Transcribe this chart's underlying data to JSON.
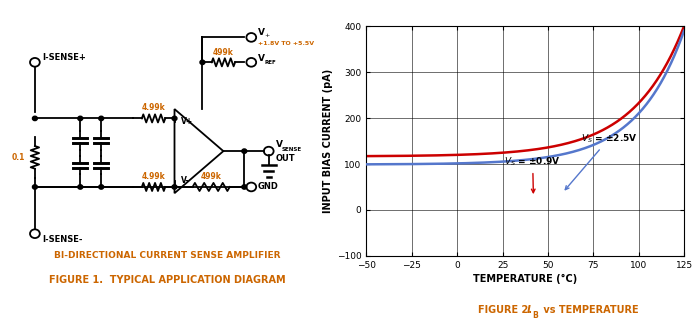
{
  "fig_width": 6.98,
  "fig_height": 3.28,
  "bg_color": "#ffffff",
  "left_panel": {
    "title1": "BI-DIRECTIONAL CURRENT SENSE AMPLIFIER",
    "title2": "FIGURE 1.  TYPICAL APPLICATION DIAGRAM",
    "title_color": "#cc6600",
    "title1_fontsize": 6.5,
    "title2_fontsize": 7.0
  },
  "right_panel": {
    "xlabel": "TEMPERATURE (°C)",
    "ylabel": "INPUT BIAS CURRENT (pA)",
    "title": "FIGURE 2.  I",
    "title_sub": "B",
    "title_rest": " vs TEMPERATURE",
    "title_color": "#cc6600",
    "xlim": [
      -50,
      125
    ],
    "ylim": [
      -100,
      400
    ],
    "xticks": [
      -50,
      -25,
      0,
      25,
      50,
      75,
      100,
      125
    ],
    "yticks": [
      -100,
      0,
      100,
      200,
      300,
      400
    ],
    "line1_color": "#cc0000",
    "line2_color": "#5577cc",
    "label_fontsize": 7,
    "tick_fontsize": 6.5
  }
}
